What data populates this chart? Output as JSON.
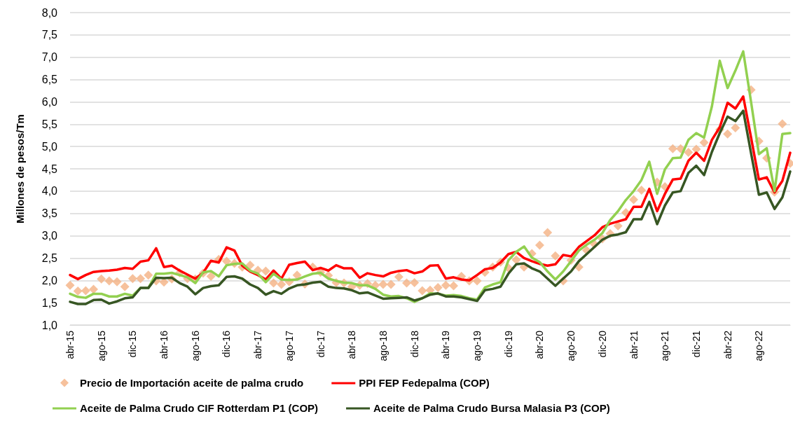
{
  "chart_data": {
    "type": "line",
    "ylabel": "Millones de pesos/Tm",
    "categories": [
      "abr-15",
      null,
      null,
      null,
      "ago-15",
      null,
      null,
      null,
      "dic-15",
      null,
      null,
      null,
      "abr-16",
      null,
      null,
      null,
      "ago-16",
      null,
      null,
      null,
      "dic-16",
      null,
      null,
      null,
      "abr-17",
      null,
      null,
      null,
      "ago-17",
      null,
      null,
      null,
      "dic-17",
      null,
      null,
      null,
      "abr-18",
      null,
      null,
      null,
      "ago-18",
      null,
      null,
      null,
      "dic-18",
      null,
      null,
      null,
      "abr-19",
      null,
      null,
      null,
      "ago-19",
      null,
      null,
      null,
      "dic-19",
      null,
      null,
      null,
      "abr-20",
      null,
      null,
      null,
      "ago-20",
      null,
      null,
      null,
      "dic-20",
      null,
      null,
      null,
      "abr-21",
      null,
      null,
      null,
      "ago-21",
      null,
      null,
      null,
      "dic-21",
      null,
      null,
      null,
      "abr-22",
      null,
      null,
      null,
      "ago-22",
      null,
      null,
      null,
      null
    ],
    "ylim": [
      1,
      8
    ],
    "yticks": [
      {
        "value": 1,
        "label": "1,0"
      },
      {
        "value": 1.5,
        "label": "1,5"
      },
      {
        "value": 2,
        "label": "2,0"
      },
      {
        "value": 2.5,
        "label": "2,5"
      },
      {
        "value": 3,
        "label": "3,0"
      },
      {
        "value": 3.5,
        "label": "3,5"
      },
      {
        "value": 4,
        "label": "4,0"
      },
      {
        "value": 4.5,
        "label": "4,5"
      },
      {
        "value": 5,
        "label": "5,0"
      },
      {
        "value": 5.5,
        "label": "5,5"
      },
      {
        "value": 6,
        "label": "6,0"
      },
      {
        "value": 6.5,
        "label": "6,5"
      },
      {
        "value": 7,
        "label": "7,0"
      },
      {
        "value": 7.5,
        "label": "7,5"
      },
      {
        "value": 8,
        "label": "8,0"
      }
    ],
    "grid": "y",
    "legend": "bottom",
    "series": [
      {
        "name": "Precio de Importación aceite de palma crudo",
        "type": "scatter",
        "marker": "diamond",
        "color": "#f4b183",
        "values": [
          1.89,
          1.76,
          1.77,
          1.8,
          2.03,
          1.99,
          1.97,
          1.86,
          2.04,
          2.04,
          2.12,
          1.99,
          1.96,
          2.03,
          2.17,
          2.04,
          2.03,
          2.16,
          2.09,
          2.47,
          2.43,
          2.38,
          2.3,
          2.34,
          2.23,
          2.21,
          1.94,
          1.91,
          1.97,
          2.12,
          1.92,
          2.3,
          2.18,
          2.11,
          1.95,
          1.94,
          1.86,
          1.89,
          1.93,
          1.89,
          1.91,
          1.91,
          2.08,
          1.94,
          1.95,
          1.77,
          1.78,
          1.84,
          1.89,
          1.88,
          2.09,
          1.99,
          1.99,
          2.18,
          2.3,
          2.41,
          2.28,
          2.46,
          2.3,
          2.6,
          2.79,
          3.07,
          2.55,
          1.99,
          2.45,
          2.3,
          2.67,
          2.81,
          2.93,
          3.05,
          3.22,
          3.52,
          3.81,
          4.02,
          null,
          4.2,
          4.1,
          4.95,
          4.95,
          4.87,
          4.94,
          5.09,
          null,
          5.38,
          5.28,
          5.42,
          null,
          6.27,
          5.12,
          4.74,
          3.98,
          5.51,
          4.62
        ]
      },
      {
        "name": "PPI FEP Fedepalma (COP)",
        "type": "line",
        "marker": "none",
        "color": "#ff0000",
        "values": [
          2.12,
          2.03,
          2.12,
          2.19,
          2.21,
          2.22,
          2.24,
          2.28,
          2.26,
          2.42,
          2.45,
          2.72,
          2.3,
          2.33,
          2.22,
          2.13,
          2.04,
          2.17,
          2.44,
          2.4,
          2.74,
          2.67,
          2.33,
          2.2,
          2.12,
          2.02,
          2.22,
          2.04,
          2.35,
          2.39,
          2.42,
          2.23,
          2.28,
          2.22,
          2.34,
          2.27,
          2.27,
          2.06,
          2.16,
          2.12,
          2.09,
          2.17,
          2.21,
          2.23,
          2.16,
          2.2,
          2.33,
          2.34,
          2.04,
          2.07,
          2.02,
          2.0,
          2.12,
          2.25,
          2.28,
          2.4,
          2.59,
          2.64,
          2.5,
          2.43,
          2.37,
          2.33,
          2.36,
          2.57,
          2.54,
          2.75,
          2.88,
          3.01,
          3.19,
          3.27,
          3.32,
          3.37,
          3.65,
          3.65,
          4.05,
          3.55,
          3.94,
          4.26,
          4.28,
          4.68,
          4.86,
          4.68,
          5.15,
          5.43,
          5.98,
          5.85,
          6.12,
          5.2,
          4.26,
          4.31,
          3.97,
          4.23,
          4.86
        ]
      },
      {
        "name": "Aceite de Palma Crudo CIF Rotterdam P1 (COP)",
        "type": "line",
        "marker": "none",
        "color": "#92d050",
        "values": [
          1.7,
          1.63,
          1.61,
          1.7,
          1.7,
          1.64,
          1.64,
          1.7,
          1.66,
          1.83,
          1.83,
          2.15,
          2.15,
          2.17,
          2.12,
          2.07,
          1.94,
          2.18,
          2.21,
          2.09,
          2.34,
          2.37,
          2.38,
          2.22,
          2.15,
          1.96,
          2.15,
          2.02,
          2.01,
          2.02,
          2.09,
          2.15,
          2.17,
          2.04,
          1.99,
          1.95,
          1.94,
          1.89,
          1.89,
          1.81,
          1.68,
          1.64,
          1.65,
          1.6,
          1.52,
          1.6,
          1.71,
          1.7,
          1.66,
          1.67,
          1.65,
          1.6,
          1.57,
          1.84,
          1.91,
          1.96,
          2.45,
          2.64,
          2.76,
          2.51,
          2.41,
          2.2,
          2.02,
          2.2,
          2.43,
          2.67,
          2.8,
          2.91,
          3.06,
          3.35,
          3.55,
          3.8,
          4.0,
          4.25,
          4.66,
          3.94,
          4.49,
          4.74,
          4.75,
          5.15,
          5.3,
          5.2,
          5.9,
          6.92,
          6.31,
          6.7,
          7.13,
          6.0,
          4.83,
          4.96,
          4.0,
          5.28,
          5.3
        ]
      },
      {
        "name": "Aceite de Palma Crudo Bursa Malasia P3 (COP)",
        "type": "line",
        "marker": "none",
        "color": "#375623",
        "values": [
          1.52,
          1.47,
          1.47,
          1.56,
          1.57,
          1.48,
          1.53,
          1.6,
          1.62,
          1.83,
          1.83,
          2.06,
          2.05,
          2.06,
          1.94,
          1.86,
          1.69,
          1.83,
          1.87,
          1.89,
          2.08,
          2.09,
          2.04,
          1.91,
          1.83,
          1.68,
          1.76,
          1.7,
          1.82,
          1.89,
          1.91,
          1.95,
          1.97,
          1.86,
          1.83,
          1.82,
          1.78,
          1.71,
          1.73,
          1.66,
          1.59,
          1.6,
          1.61,
          1.62,
          1.55,
          1.6,
          1.68,
          1.71,
          1.64,
          1.64,
          1.62,
          1.58,
          1.54,
          1.78,
          1.81,
          1.86,
          2.15,
          2.36,
          2.38,
          2.27,
          2.2,
          2.04,
          1.88,
          2.04,
          2.2,
          2.43,
          2.59,
          2.75,
          2.91,
          3.0,
          3.03,
          3.08,
          3.37,
          3.37,
          3.76,
          3.26,
          3.68,
          3.97,
          4.0,
          4.41,
          4.57,
          4.36,
          4.88,
          5.3,
          5.67,
          5.57,
          5.8,
          4.85,
          3.92,
          3.97,
          3.6,
          3.86,
          4.44
        ]
      }
    ]
  }
}
